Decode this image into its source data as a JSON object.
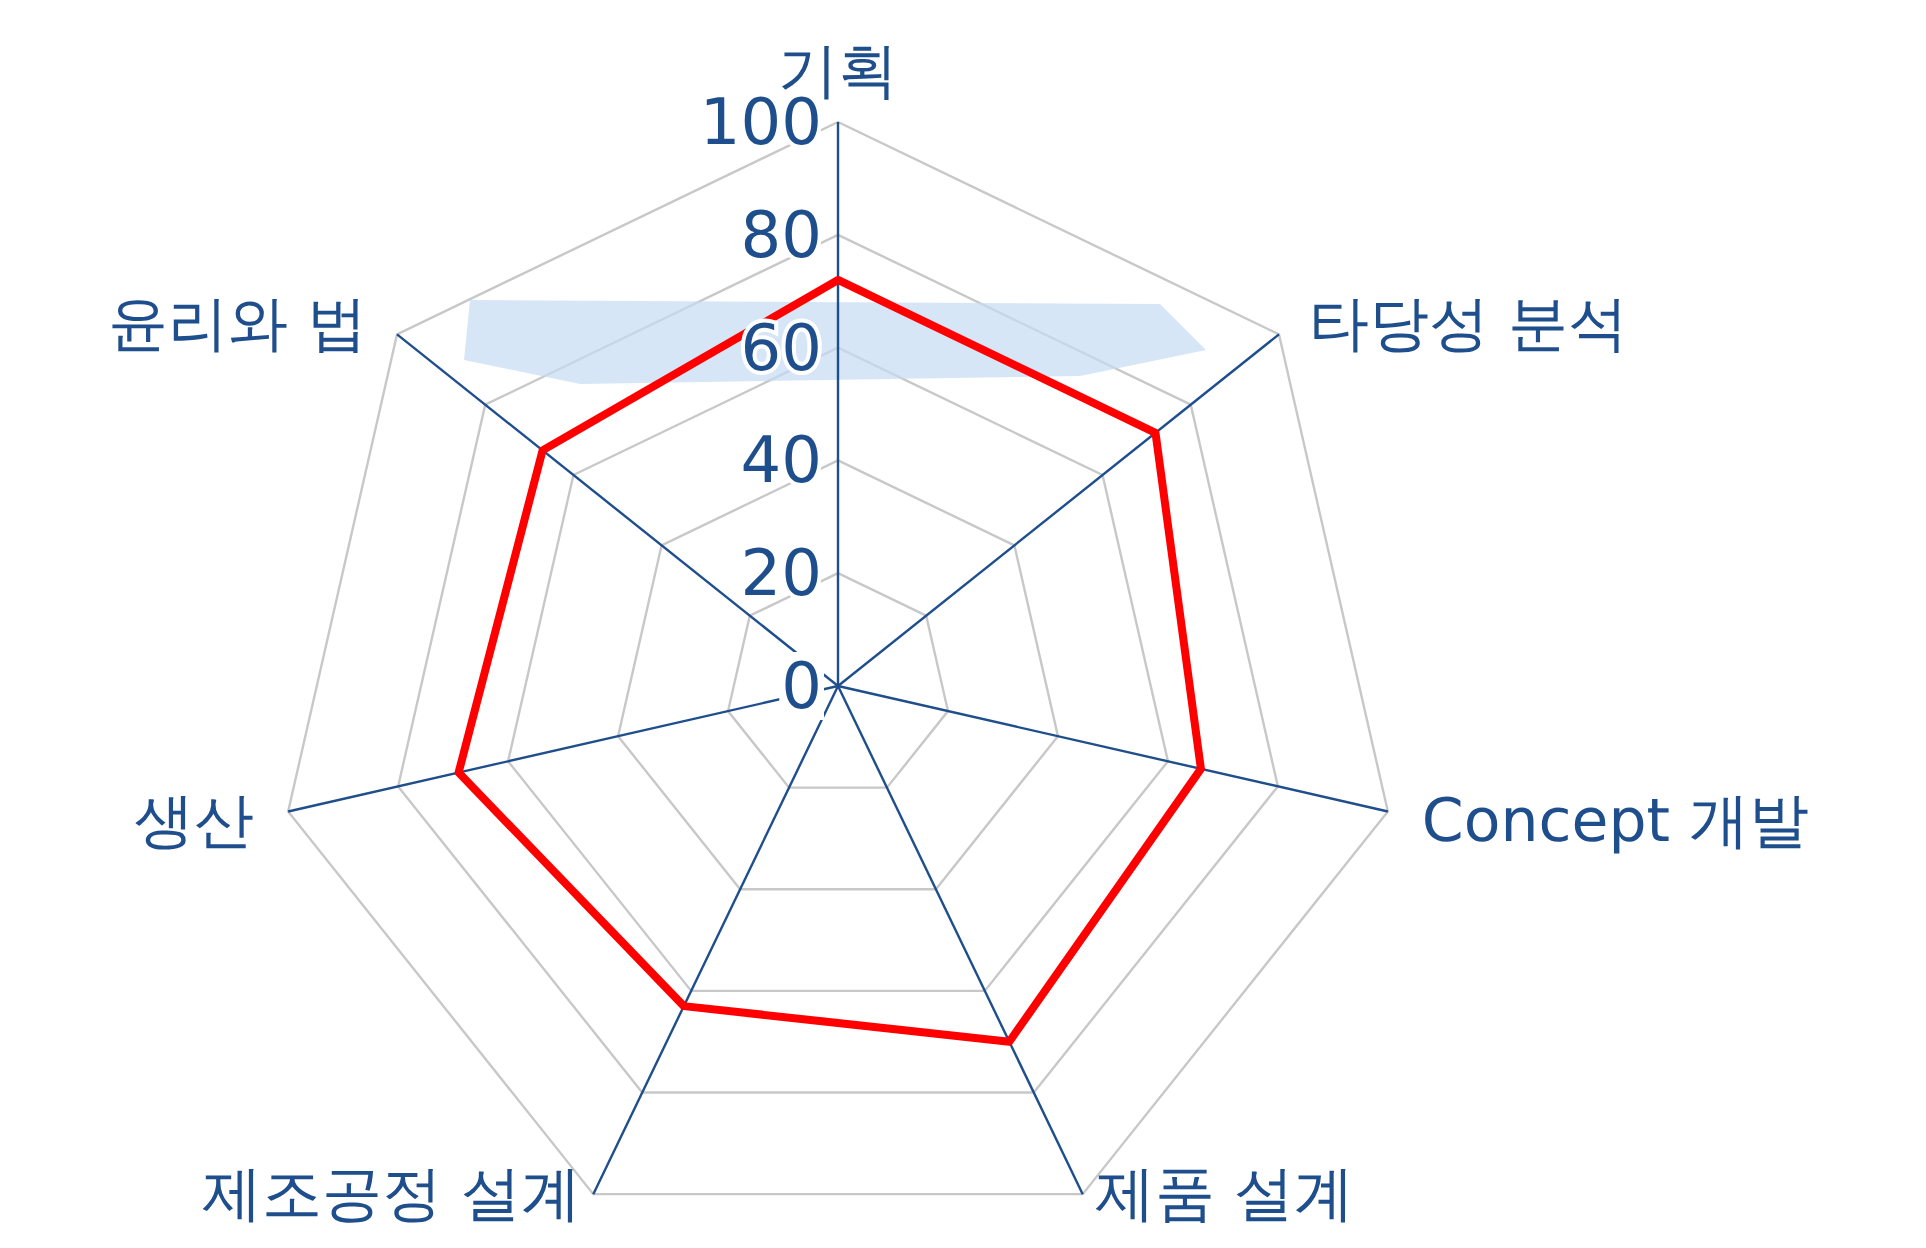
{
  "chart_data": {
    "type": "radar",
    "categories": [
      "기획",
      "타당성 분석",
      "Concept 개발",
      "제품 설계",
      "제조공정 설계",
      "생산",
      "윤리와 법"
    ],
    "series": [
      {
        "color": "#ff0000",
        "values": [
          72,
          72,
          66,
          70,
          63,
          69,
          67
        ]
      }
    ],
    "ylim": [
      0,
      100
    ],
    "yticks": [
      0,
      20,
      40,
      60,
      80,
      100
    ],
    "grid": true
  }
}
